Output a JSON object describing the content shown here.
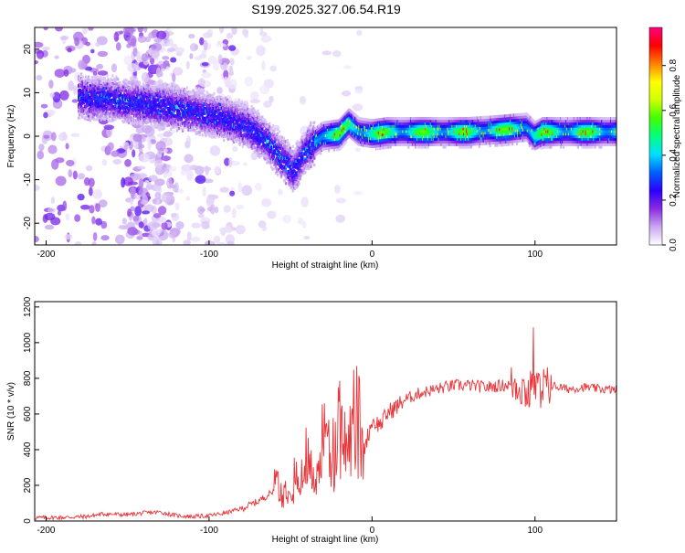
{
  "title": "S199.2025.327.06.54.R19",
  "chart_data": [
    {
      "type": "heatmap",
      "title": "",
      "xlabel": "Height of straight line (km)",
      "ylabel": "Frequency (Hz)",
      "xlim": [
        -207,
        150
      ],
      "ylim": [
        -25,
        25
      ],
      "xticks": [
        -200,
        -100,
        0,
        100
      ],
      "yticks": [
        -20,
        -10,
        0,
        10,
        20
      ],
      "colorbar": {
        "label": "Normalized spectral amplitude",
        "range": [
          0,
          0.97
        ],
        "ticks": [
          0.0,
          0.2,
          0.4,
          0.6,
          0.8
        ],
        "colors": [
          "#ffffff",
          "#c8a8f0",
          "#8a2be2",
          "#2a00ff",
          "#0060ff",
          "#00e0ff",
          "#00ff80",
          "#40ff00",
          "#d0ff00",
          "#ffff00",
          "#ff8000",
          "#ff0000",
          "#ff0080"
        ]
      },
      "ridge": {
        "x": [
          -180,
          -160,
          -140,
          -120,
          -100,
          -85,
          -75,
          -65,
          -55,
          -48,
          -40,
          -30,
          -20,
          -14,
          -8,
          0,
          10,
          30,
          60,
          80,
          95,
          100,
          105,
          120,
          150
        ],
        "y": [
          9,
          8.5,
          7.5,
          6.5,
          5,
          3.5,
          2,
          -1,
          -5,
          -8,
          -3,
          0,
          0.5,
          3,
          1,
          0.5,
          1,
          1,
          1,
          1.5,
          2,
          0,
          1,
          1,
          1
        ]
      }
    },
    {
      "type": "line",
      "title": "",
      "xlabel": "Height of straight line (km)",
      "ylabel": "SNR (10 * v/v)",
      "xlim": [
        -207,
        150
      ],
      "ylim": [
        0,
        1230
      ],
      "xticks": [
        -200,
        -100,
        0,
        100
      ],
      "yticks": [
        0,
        200,
        400,
        600,
        800,
        1000,
        1200
      ],
      "series": [
        {
          "name": "SNR",
          "color": "#e8353a",
          "x": [
            -207,
            -190,
            -175,
            -165,
            -150,
            -140,
            -130,
            -120,
            -110,
            -100,
            -90,
            -80,
            -70,
            -60,
            -55,
            -50,
            -45,
            -40,
            -35,
            -30,
            -25,
            -20,
            -15,
            -10,
            -5,
            0,
            5,
            10,
            15,
            20,
            30,
            40,
            50,
            60,
            70,
            80,
            90,
            95,
            100,
            105,
            110,
            120,
            130,
            140,
            150
          ],
          "y": [
            18,
            20,
            25,
            40,
            35,
            45,
            50,
            30,
            25,
            30,
            45,
            70,
            110,
            170,
            150,
            230,
            180,
            320,
            250,
            400,
            300,
            460,
            420,
            520,
            400,
            560,
            540,
            610,
            640,
            680,
            720,
            740,
            760,
            760,
            750,
            760,
            770,
            720,
            740,
            750,
            760,
            740,
            750,
            740,
            735
          ]
        }
      ]
    }
  ]
}
